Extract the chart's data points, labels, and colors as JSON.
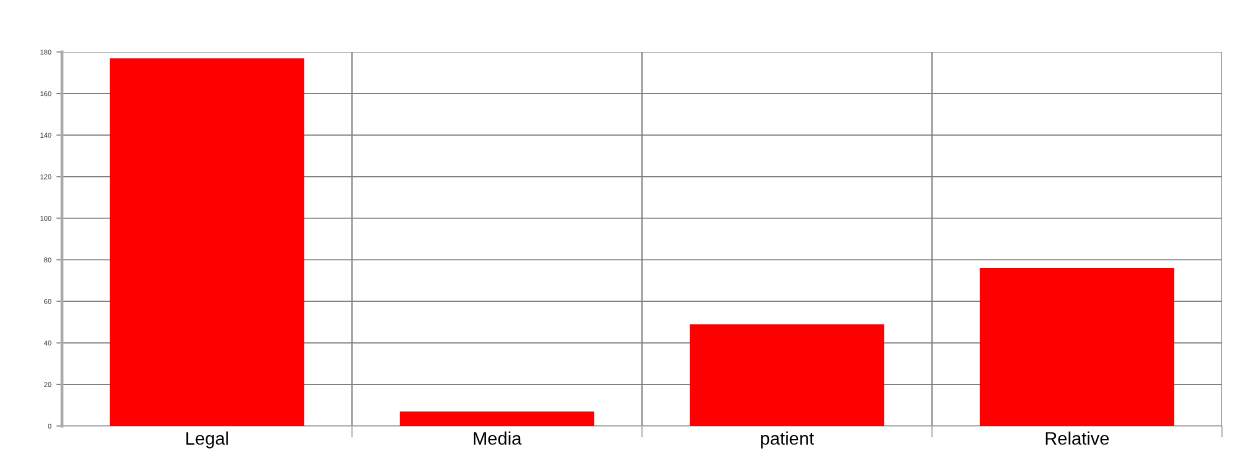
{
  "chart_data": {
    "type": "bar",
    "categories": [
      "Legal",
      "Media",
      "patient",
      "Relative"
    ],
    "values": [
      177,
      7,
      49,
      76
    ],
    "color": "#ff0000",
    "ylim": [
      0,
      180
    ],
    "yticks": [
      0,
      20,
      40,
      60,
      80,
      100,
      120,
      140,
      160,
      180
    ],
    "grid": true
  }
}
